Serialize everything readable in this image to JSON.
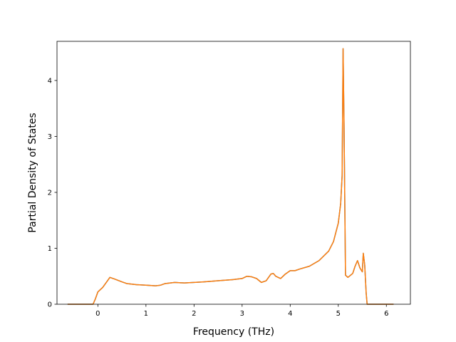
{
  "chart_data": {
    "type": "line",
    "title": "",
    "xlabel": "Frequency (THz)",
    "ylabel": "Partial Density of States",
    "xlim": [
      -0.85,
      6.5
    ],
    "ylim": [
      0,
      4.7
    ],
    "xticks": [
      0,
      1,
      2,
      3,
      4,
      5,
      6
    ],
    "yticks": [
      0,
      1,
      2,
      3,
      4
    ],
    "grid": false,
    "legend": "none",
    "series": [
      {
        "color": "#1f77b4",
        "x": [
          -0.63,
          -0.1,
          -0.05,
          0.0,
          0.1,
          0.2,
          0.25,
          0.35,
          0.5,
          0.6,
          0.8,
          1.0,
          1.2,
          1.3,
          1.4,
          1.6,
          1.8,
          2.0,
          2.2,
          2.5,
          2.8,
          3.0,
          3.1,
          3.2,
          3.3,
          3.4,
          3.5,
          3.6,
          3.65,
          3.7,
          3.8,
          3.9,
          4.0,
          4.1,
          4.2,
          4.4,
          4.6,
          4.8,
          4.9,
          5.0,
          5.05,
          5.08,
          5.1,
          5.12,
          5.15,
          5.2,
          5.3,
          5.35,
          5.4,
          5.45,
          5.5,
          5.52,
          5.55,
          5.58,
          5.6,
          6.15
        ],
        "y": [
          0,
          0,
          0.1,
          0.22,
          0.3,
          0.42,
          0.48,
          0.45,
          0.4,
          0.37,
          0.35,
          0.34,
          0.33,
          0.34,
          0.37,
          0.39,
          0.38,
          0.39,
          0.4,
          0.42,
          0.44,
          0.46,
          0.5,
          0.49,
          0.46,
          0.39,
          0.42,
          0.54,
          0.55,
          0.5,
          0.46,
          0.54,
          0.6,
          0.6,
          0.63,
          0.68,
          0.78,
          0.95,
          1.12,
          1.45,
          1.8,
          2.3,
          4.57,
          3.2,
          0.52,
          0.48,
          0.55,
          0.68,
          0.78,
          0.65,
          0.58,
          0.91,
          0.7,
          0.2,
          0,
          0
        ]
      },
      {
        "color": "#ff7f0e",
        "x": [
          -0.63,
          -0.1,
          -0.05,
          0.0,
          0.1,
          0.2,
          0.25,
          0.35,
          0.5,
          0.6,
          0.8,
          1.0,
          1.2,
          1.3,
          1.4,
          1.6,
          1.8,
          2.0,
          2.2,
          2.5,
          2.8,
          3.0,
          3.1,
          3.2,
          3.3,
          3.4,
          3.5,
          3.6,
          3.65,
          3.7,
          3.8,
          3.9,
          4.0,
          4.1,
          4.2,
          4.4,
          4.6,
          4.8,
          4.9,
          5.0,
          5.05,
          5.08,
          5.1,
          5.12,
          5.15,
          5.2,
          5.3,
          5.35,
          5.4,
          5.45,
          5.5,
          5.52,
          5.55,
          5.58,
          5.6,
          6.15
        ],
        "y": [
          0,
          0,
          0.1,
          0.22,
          0.3,
          0.42,
          0.48,
          0.45,
          0.4,
          0.37,
          0.35,
          0.34,
          0.33,
          0.34,
          0.37,
          0.39,
          0.38,
          0.39,
          0.4,
          0.42,
          0.44,
          0.46,
          0.5,
          0.49,
          0.46,
          0.39,
          0.42,
          0.54,
          0.55,
          0.5,
          0.46,
          0.54,
          0.6,
          0.6,
          0.63,
          0.68,
          0.78,
          0.95,
          1.12,
          1.45,
          1.8,
          2.3,
          4.57,
          3.2,
          0.52,
          0.48,
          0.55,
          0.68,
          0.78,
          0.65,
          0.58,
          0.91,
          0.7,
          0.2,
          0,
          0
        ]
      }
    ]
  }
}
